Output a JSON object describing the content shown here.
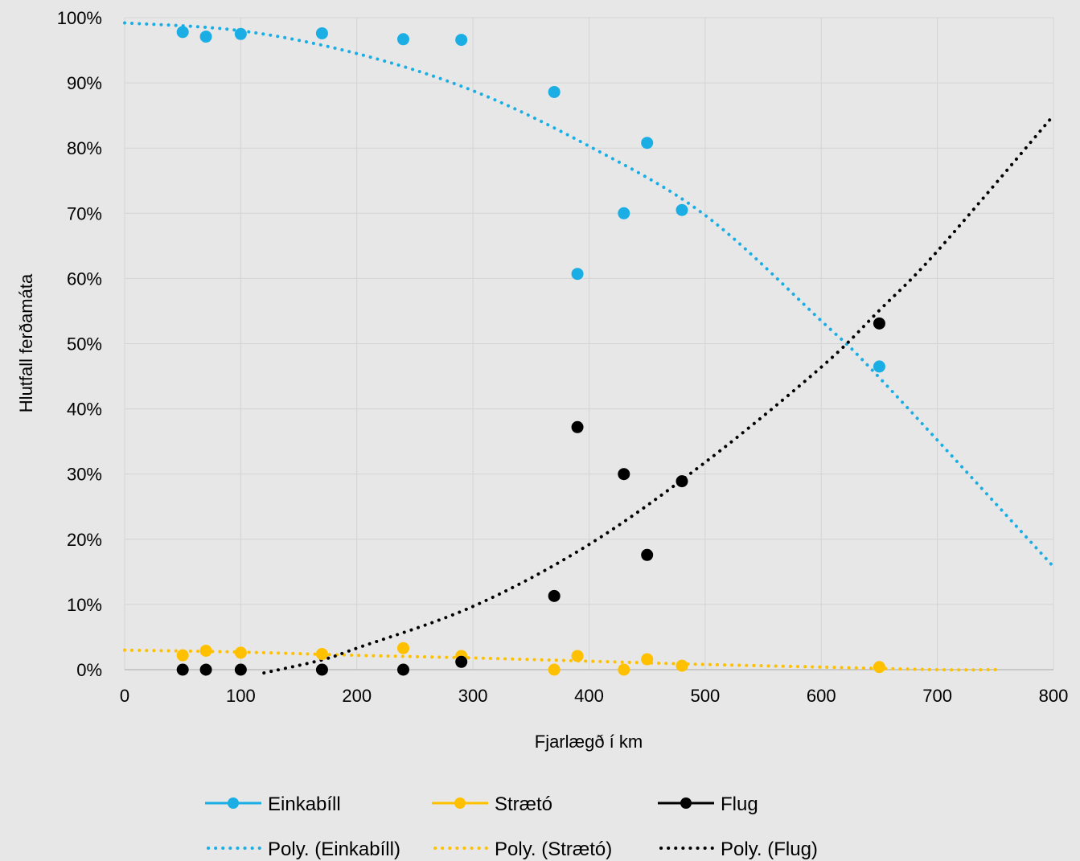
{
  "chart_data": {
    "type": "scatter",
    "title": "",
    "xlabel": "Fjarlægð í km",
    "ylabel": "Hlutfall ferðamáta",
    "xlim": [
      0,
      800
    ],
    "ylim": [
      0,
      100
    ],
    "x_ticks": [
      "0",
      "100",
      "200",
      "300",
      "400",
      "500",
      "600",
      "700",
      "800"
    ],
    "y_ticks": [
      "0%",
      "10%",
      "20%",
      "30%",
      "40%",
      "50%",
      "60%",
      "70%",
      "80%",
      "90%",
      "100%"
    ],
    "grid": true,
    "legend_position": "bottom",
    "series": [
      {
        "name": "Einkabíll",
        "color": "#1aaee5",
        "marker": "circle",
        "points": [
          [
            50,
            97.8
          ],
          [
            70,
            97.1
          ],
          [
            100,
            97.5
          ],
          [
            170,
            97.6
          ],
          [
            240,
            96.7
          ],
          [
            290,
            96.6
          ],
          [
            370,
            88.6
          ],
          [
            390,
            60.7
          ],
          [
            430,
            70.0
          ],
          [
            450,
            80.8
          ],
          [
            480,
            70.5
          ],
          [
            650,
            46.5
          ]
        ]
      },
      {
        "name": "Strætó",
        "color": "#ffc000",
        "marker": "circle",
        "points": [
          [
            50,
            2.2
          ],
          [
            70,
            2.9
          ],
          [
            100,
            2.6
          ],
          [
            170,
            2.4
          ],
          [
            240,
            3.3
          ],
          [
            290,
            2.1
          ],
          [
            370,
            0.0
          ],
          [
            390,
            2.1
          ],
          [
            430,
            0.0
          ],
          [
            450,
            1.6
          ],
          [
            480,
            0.6
          ],
          [
            650,
            0.4
          ]
        ]
      },
      {
        "name": "Flug",
        "color": "#000000",
        "marker": "circle",
        "points": [
          [
            50,
            0.0
          ],
          [
            70,
            0.0
          ],
          [
            100,
            0.0
          ],
          [
            170,
            0.0
          ],
          [
            240,
            0.0
          ],
          [
            290,
            1.2
          ],
          [
            370,
            11.3
          ],
          [
            390,
            37.2
          ],
          [
            430,
            30.0
          ],
          [
            450,
            17.6
          ],
          [
            480,
            28.9
          ],
          [
            650,
            53.1
          ]
        ]
      }
    ],
    "trendlines": [
      {
        "name": "Poly. (Einkabíll)",
        "color": "#1aaee5",
        "style": "dotted",
        "x_range": [
          0,
          800
        ],
        "points": [
          [
            0,
            99.2
          ],
          [
            100,
            98.0
          ],
          [
            200,
            94.5
          ],
          [
            300,
            88.8
          ],
          [
            400,
            80.3
          ],
          [
            500,
            69.7
          ],
          [
            600,
            53.5
          ],
          [
            650,
            44.8
          ],
          [
            800,
            15.8
          ]
        ]
      },
      {
        "name": "Poly. (Strætó)",
        "color": "#ffc000",
        "style": "dotted",
        "x_range": [
          0,
          750
        ],
        "points": [
          [
            0,
            3.0
          ],
          [
            100,
            2.7
          ],
          [
            200,
            2.2
          ],
          [
            300,
            1.8
          ],
          [
            400,
            1.3
          ],
          [
            500,
            0.8
          ],
          [
            600,
            0.4
          ],
          [
            700,
            0.0
          ],
          [
            750,
            0.0
          ]
        ]
      },
      {
        "name": "Poly. (Flug)",
        "color": "#000000",
        "style": "dotted",
        "x_range": [
          120,
          800
        ],
        "points": [
          [
            120,
            -0.5
          ],
          [
            170,
            1.5
          ],
          [
            200,
            3.3
          ],
          [
            300,
            9.7
          ],
          [
            400,
            19.2
          ],
          [
            500,
            31.8
          ],
          [
            600,
            46.4
          ],
          [
            650,
            55.1
          ],
          [
            700,
            64.2
          ],
          [
            800,
            85.0
          ]
        ]
      }
    ]
  }
}
